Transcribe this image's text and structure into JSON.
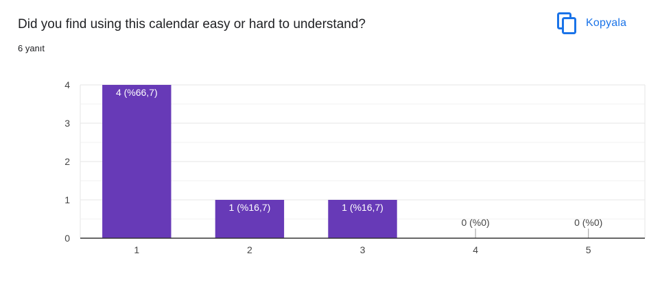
{
  "header": {
    "question": "Did you find using this calendar easy or hard to understand?",
    "response_count": "6 yanıt",
    "copy_label": "Kopyala",
    "copy_icon": "copy-icon"
  },
  "colors": {
    "bar": "#673ab7",
    "accent": "#1a73e8",
    "grid": "#e6e6e6",
    "axis": "#333333"
  },
  "chart_data": {
    "type": "bar",
    "categories": [
      "1",
      "2",
      "3",
      "4",
      "5"
    ],
    "values": [
      4,
      1,
      1,
      0,
      0
    ],
    "data_labels": [
      "4 (%66,7)",
      "1 (%16,7)",
      "1 (%16,7)",
      "0 (%0)",
      "0 (%0)"
    ],
    "y_ticks": [
      "0",
      "1",
      "2",
      "3",
      "4"
    ],
    "ylim": [
      0,
      4
    ],
    "grid": true,
    "xlabel": "",
    "ylabel": ""
  }
}
